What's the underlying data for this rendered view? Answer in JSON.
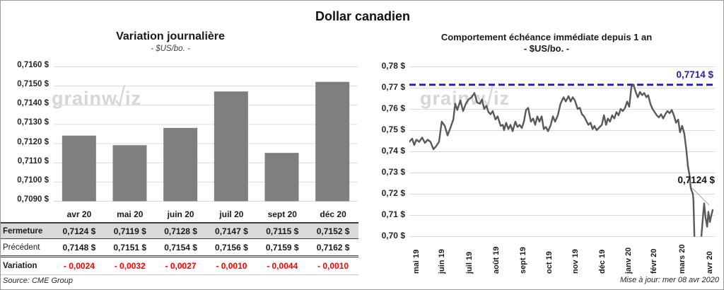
{
  "page": {
    "title": "Dollar canadien"
  },
  "colors": {
    "bar": "#7f7f7f",
    "line": "#595959",
    "reference": "#1f1fb4",
    "negative": "#ff0000",
    "grid": "#d9d9d9",
    "fermeture_row_bg": "#d9d9d9",
    "watermark": "#d6d6d6"
  },
  "left_panel": {
    "title": "Variation  journalière",
    "subtitle": "- $US/bo. -",
    "watermark": "grainwiz",
    "source": "Source: CME Group",
    "table": {
      "columns": [
        "avr 20",
        "mai 20",
        "juin 20",
        "juil 20",
        "sept 20",
        "déc 20"
      ],
      "rows": [
        {
          "label": "Fermeture",
          "values": [
            "0,7124  $",
            "0,7119  $",
            "0,7128  $",
            "0,7147  $",
            "0,7115  $",
            "0,7152  $"
          ]
        },
        {
          "label": "Précédent",
          "values": [
            "0,7148  $",
            "0,7151  $",
            "0,7154  $",
            "0,7156  $",
            "0,7159  $",
            "0,7162  $"
          ]
        },
        {
          "label": "Variation",
          "values": [
            "- 0,0024",
            "- 0,0032",
            "- 0,0027",
            "- 0,0010",
            "- 0,0044",
            "- 0,0010"
          ]
        }
      ]
    }
  },
  "right_panel": {
    "title": "Comportement échéance immédiate depuis 1 an",
    "subtitle": "- $US/bo. -",
    "watermark": "grainwiz",
    "update_note": "Mise à jour: mer 08 avr 2020"
  },
  "chart_data": [
    {
      "type": "bar",
      "title": "Variation journalière",
      "units": "$US/bo.",
      "categories": [
        "avr 20",
        "mai 20",
        "juin 20",
        "juil 20",
        "sept 20",
        "déc 20"
      ],
      "values": [
        0.7124,
        0.7119,
        0.7128,
        0.7147,
        0.7115,
        0.7152
      ],
      "previous_values": [
        0.7148,
        0.7151,
        0.7154,
        0.7156,
        0.7159,
        0.7162
      ],
      "variations": [
        -0.0024,
        -0.0032,
        -0.0027,
        -0.001,
        -0.0044,
        -0.001
      ],
      "ylim": [
        0.709,
        0.716
      ],
      "y_tick_labels": [
        "0,7160 $",
        "0,7150 $",
        "0,7140 $",
        "0,7130 $",
        "0,7120 $",
        "0,7110 $",
        "0,7100 $",
        "0,7090 $"
      ],
      "grid": true,
      "legend": false
    },
    {
      "type": "line",
      "title": "Comportement échéance immédiate depuis 1 an",
      "units": "$US/bo.",
      "ylim": [
        0.7,
        0.78
      ],
      "y_tick_labels": [
        "0,78 $",
        "0,77 $",
        "0,76 $",
        "0,75 $",
        "0,74 $",
        "0,73 $",
        "0,72 $",
        "0,71 $",
        "0,70 $"
      ],
      "x_tick_labels": [
        "mai 19",
        "juin 19",
        "juil 19",
        "août 19",
        "sept 19",
        "oct 19",
        "nov 19",
        "déc 19",
        "janv 20",
        "févr 20",
        "mars 20",
        "avr 20"
      ],
      "x_tick_pos": [
        0.025,
        0.109,
        0.199,
        0.287,
        0.375,
        0.461,
        0.546,
        0.634,
        0.72,
        0.803,
        0.896,
        0.986
      ],
      "grid": true,
      "legend": false,
      "reference_line": {
        "value": 0.7714,
        "label": "0,7714 $",
        "style": "dashed"
      },
      "last_point": {
        "value": 0.7124,
        "label": "0,7124 $"
      },
      "points": [
        [
          0.0,
          0.7445
        ],
        [
          0.009,
          0.746
        ],
        [
          0.016,
          0.743
        ],
        [
          0.023,
          0.7455
        ],
        [
          0.032,
          0.7445
        ],
        [
          0.042,
          0.7465
        ],
        [
          0.051,
          0.744
        ],
        [
          0.06,
          0.7455
        ],
        [
          0.069,
          0.7445
        ],
        [
          0.079,
          0.741
        ],
        [
          0.088,
          0.7425
        ],
        [
          0.097,
          0.7445
        ],
        [
          0.106,
          0.754
        ],
        [
          0.116,
          0.752
        ],
        [
          0.125,
          0.7475
        ],
        [
          0.134,
          0.751
        ],
        [
          0.144,
          0.755
        ],
        [
          0.15,
          0.7625
        ],
        [
          0.157,
          0.7595
        ],
        [
          0.167,
          0.764
        ],
        [
          0.176,
          0.759
        ],
        [
          0.185,
          0.7625
        ],
        [
          0.194,
          0.7645
        ],
        [
          0.204,
          0.7655
        ],
        [
          0.213,
          0.7675
        ],
        [
          0.222,
          0.763
        ],
        [
          0.231,
          0.7625
        ],
        [
          0.238,
          0.7645
        ],
        [
          0.245,
          0.76
        ],
        [
          0.252,
          0.7615
        ],
        [
          0.259,
          0.7585
        ],
        [
          0.266,
          0.7575
        ],
        [
          0.273,
          0.759
        ],
        [
          0.282,
          0.755
        ],
        [
          0.289,
          0.7565
        ],
        [
          0.299,
          0.752
        ],
        [
          0.306,
          0.7525
        ],
        [
          0.31,
          0.75
        ],
        [
          0.317,
          0.7535
        ],
        [
          0.324,
          0.7505
        ],
        [
          0.331,
          0.7525
        ],
        [
          0.338,
          0.7495
        ],
        [
          0.347,
          0.754
        ],
        [
          0.354,
          0.7515
        ],
        [
          0.361,
          0.7525
        ],
        [
          0.368,
          0.751
        ],
        [
          0.375,
          0.754
        ],
        [
          0.382,
          0.7595
        ],
        [
          0.389,
          0.7605
        ],
        [
          0.398,
          0.754
        ],
        [
          0.405,
          0.7555
        ],
        [
          0.412,
          0.7525
        ],
        [
          0.419,
          0.7565
        ],
        [
          0.426,
          0.754
        ],
        [
          0.433,
          0.7565
        ],
        [
          0.44,
          0.7505
        ],
        [
          0.447,
          0.7515
        ],
        [
          0.454,
          0.7495
        ],
        [
          0.463,
          0.7525
        ],
        [
          0.47,
          0.7565
        ],
        [
          0.477,
          0.754
        ],
        [
          0.486,
          0.757
        ],
        [
          0.495,
          0.7625
        ],
        [
          0.505,
          0.7655
        ],
        [
          0.512,
          0.7635
        ],
        [
          0.521,
          0.766
        ],
        [
          0.528,
          0.7635
        ],
        [
          0.535,
          0.7655
        ],
        [
          0.542,
          0.764
        ],
        [
          0.551,
          0.76
        ],
        [
          0.558,
          0.7605
        ],
        [
          0.565,
          0.7575
        ],
        [
          0.572,
          0.7565
        ],
        [
          0.579,
          0.7545
        ],
        [
          0.586,
          0.7525
        ],
        [
          0.593,
          0.7535
        ],
        [
          0.6,
          0.7505
        ],
        [
          0.606,
          0.752
        ],
        [
          0.613,
          0.75
        ],
        [
          0.62,
          0.751
        ],
        [
          0.63,
          0.7525
        ],
        [
          0.637,
          0.757
        ],
        [
          0.644,
          0.7525
        ],
        [
          0.65,
          0.7555
        ],
        [
          0.657,
          0.754
        ],
        [
          0.664,
          0.757
        ],
        [
          0.671,
          0.7555
        ],
        [
          0.678,
          0.7585
        ],
        [
          0.685,
          0.757
        ],
        [
          0.692,
          0.76
        ],
        [
          0.699,
          0.759
        ],
        [
          0.706,
          0.7605
        ],
        [
          0.713,
          0.7635
        ],
        [
          0.72,
          0.761
        ],
        [
          0.727,
          0.7705
        ],
        [
          0.734,
          0.7714
        ],
        [
          0.741,
          0.768
        ],
        [
          0.748,
          0.7655
        ],
        [
          0.755,
          0.768
        ],
        [
          0.762,
          0.7665
        ],
        [
          0.769,
          0.7675
        ],
        [
          0.776,
          0.7655
        ],
        [
          0.782,
          0.7665
        ],
        [
          0.789,
          0.7625
        ],
        [
          0.796,
          0.76
        ],
        [
          0.803,
          0.7585
        ],
        [
          0.81,
          0.757
        ],
        [
          0.817,
          0.756
        ],
        [
          0.824,
          0.7575
        ],
        [
          0.831,
          0.7555
        ],
        [
          0.838,
          0.7575
        ],
        [
          0.845,
          0.759
        ],
        [
          0.852,
          0.758
        ],
        [
          0.859,
          0.7595
        ],
        [
          0.866,
          0.757
        ],
        [
          0.873,
          0.7535
        ],
        [
          0.88,
          0.755
        ],
        [
          0.886,
          0.749
        ],
        [
          0.893,
          0.752
        ],
        [
          0.9,
          0.7485
        ],
        [
          0.907,
          0.7405
        ],
        [
          0.912,
          0.733
        ],
        [
          0.917,
          0.729
        ],
        [
          0.921,
          0.723
        ],
        [
          0.924,
          0.7215
        ],
        [
          0.928,
          0.72
        ],
        [
          0.93,
          0.717
        ],
        [
          0.935,
          0.69
        ],
        [
          0.942,
          0.684
        ],
        [
          0.949,
          0.69
        ],
        [
          0.956,
          0.7
        ],
        [
          0.961,
          0.709
        ],
        [
          0.965,
          0.7155
        ],
        [
          0.97,
          0.7085
        ],
        [
          0.975,
          0.7045
        ],
        [
          0.979,
          0.7115
        ],
        [
          0.984,
          0.7067
        ],
        [
          0.988,
          0.7095
        ],
        [
          0.993,
          0.7124
        ]
      ]
    }
  ]
}
